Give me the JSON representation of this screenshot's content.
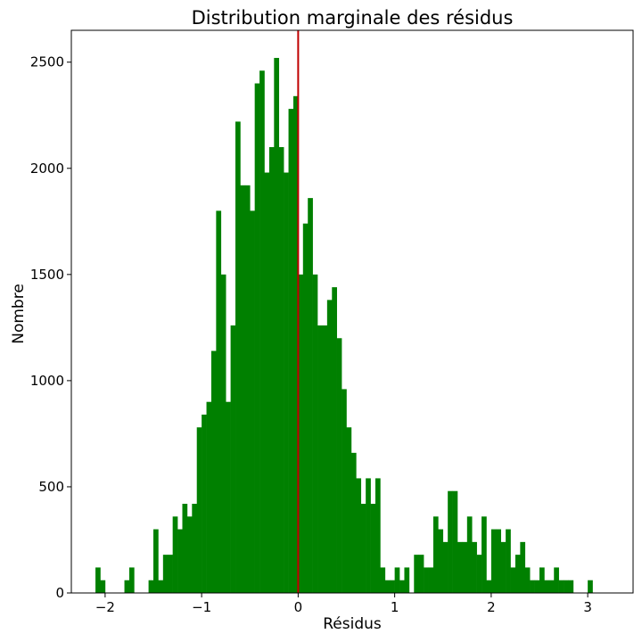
{
  "chart_data": {
    "type": "bar",
    "subtype": "histogram",
    "title": "Distribution marginale des résidus",
    "xlabel": "Résidus",
    "ylabel": "Nombre",
    "xlim": [
      -2.35,
      3.47
    ],
    "ylim": [
      0,
      2650
    ],
    "xticks": [
      -2,
      -1,
      0,
      1,
      2,
      3
    ],
    "xtick_labels": [
      "−2",
      "−1",
      "0",
      "1",
      "2",
      "3"
    ],
    "yticks": [
      0,
      500,
      1000,
      1500,
      2000,
      2500
    ],
    "ytick_labels": [
      "0",
      "500",
      "1000",
      "1500",
      "2000",
      "2500"
    ],
    "bin_start": -2.1,
    "bin_width": 0.05,
    "counts": [
      120,
      60,
      0,
      0,
      0,
      0,
      60,
      120,
      0,
      0,
      0,
      60,
      300,
      60,
      180,
      180,
      360,
      300,
      420,
      360,
      420,
      780,
      840,
      900,
      1140,
      1800,
      1500,
      900,
      1260,
      2220,
      1920,
      1920,
      1800,
      2400,
      2460,
      1980,
      2100,
      2520,
      2100,
      1980,
      2280,
      2340,
      1500,
      1740,
      1860,
      1500,
      1260,
      1260,
      1380,
      1440,
      1200,
      960,
      780,
      660,
      540,
      420,
      540,
      420,
      540,
      120,
      60,
      60,
      120,
      60,
      120,
      0,
      180,
      180,
      120,
      120,
      360,
      300,
      240,
      480,
      480,
      240,
      240,
      360,
      240,
      180,
      360,
      60,
      300,
      300,
      240,
      300,
      120,
      180,
      240,
      120,
      60,
      60,
      120,
      60,
      60,
      120,
      60,
      60,
      60,
      0,
      0,
      0,
      60
    ],
    "bar_color": "#008000",
    "grid": false,
    "annotations": [
      {
        "type": "vline",
        "x": 0,
        "color": "#c00000"
      }
    ]
  }
}
